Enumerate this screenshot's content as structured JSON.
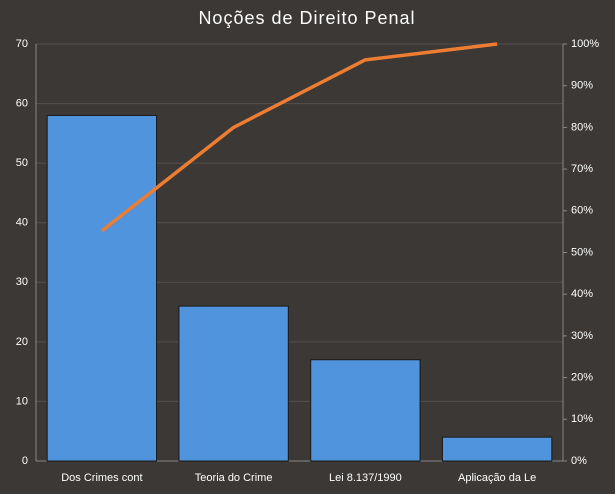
{
  "chart_data": {
    "type": "bar",
    "title": "Noções de Direito Penal",
    "categories": [
      "Dos Crimes cont",
      "Teoria do Crime",
      "Lei 8.137/1990",
      "Aplicação da Le"
    ],
    "series": [
      {
        "type": "bar",
        "color": "#4f94dc",
        "values": [
          58,
          26,
          17,
          4
        ]
      },
      {
        "type": "line",
        "axis": "y2",
        "color": "#ed7d31",
        "values": [
          55.2,
          80,
          96.2,
          100
        ]
      }
    ],
    "ylim": [
      0,
      70
    ],
    "yticks": [
      0,
      10,
      20,
      30,
      40,
      50,
      60,
      70
    ],
    "y2lim": [
      0,
      100
    ],
    "y2ticks": [
      {
        "value": 0,
        "label": "0%"
      },
      {
        "value": 10,
        "label": "10%"
      },
      {
        "value": 20,
        "label": "20%"
      },
      {
        "value": 30,
        "label": "30%"
      },
      {
        "value": 40,
        "label": "40%"
      },
      {
        "value": 50,
        "label": "50%"
      },
      {
        "value": 60,
        "label": "60%"
      },
      {
        "value": 70,
        "label": "70%"
      },
      {
        "value": 80,
        "label": "80%"
      },
      {
        "value": 90,
        "label": "90%"
      },
      {
        "value": 100,
        "label": "100%"
      }
    ],
    "grid": true
  }
}
